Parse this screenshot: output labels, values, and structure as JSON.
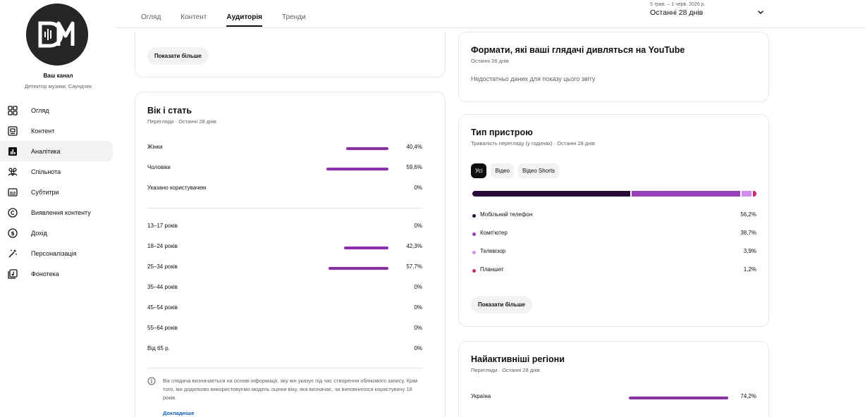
{
  "sidebar": {
    "channel_name": "Ваш канал",
    "channel_sub": "Детектор музики: Саундчек",
    "items": [
      {
        "label": "Огляд",
        "icon": "dashboard-icon",
        "active": false
      },
      {
        "label": "Контент",
        "icon": "content-icon",
        "active": false
      },
      {
        "label": "Аналітика",
        "icon": "analytics-icon",
        "active": true
      },
      {
        "label": "Спільнота",
        "icon": "community-icon",
        "active": false
      },
      {
        "label": "Субтитри",
        "icon": "subtitles-icon",
        "active": false
      },
      {
        "label": "Виявлення контенту",
        "icon": "copyright-icon",
        "active": false
      },
      {
        "label": "Дохід",
        "icon": "earn-icon",
        "active": false
      },
      {
        "label": "Персоналізація",
        "icon": "customization-icon",
        "active": false
      },
      {
        "label": "Фонотека",
        "icon": "audio-library-icon",
        "active": false
      }
    ]
  },
  "header": {
    "tabs": [
      {
        "label": "Огляд",
        "active": false
      },
      {
        "label": "Контент",
        "active": false
      },
      {
        "label": "Аудиторія",
        "active": true
      },
      {
        "label": "Тренди",
        "active": false
      }
    ],
    "date_range_small": "5 трав. – 1 черв. 2026 р.",
    "date_range_main": "Останні 28 днів"
  },
  "top_left_card": {
    "show_more": "Показати більше"
  },
  "age_gender": {
    "title": "Вік і стать",
    "subtitle": "Перегляди · Останні 28 днів",
    "gender_rows": [
      {
        "label": "Жінки",
        "value": "40,4%",
        "pct": 40.4
      },
      {
        "label": "Чоловіки",
        "value": "59,6%",
        "pct": 59.6
      },
      {
        "label": "Указано користувачем",
        "value": "0%",
        "pct": 0
      }
    ],
    "age_rows": [
      {
        "label": "13–17 років",
        "value": "0%",
        "pct": 0
      },
      {
        "label": "18–24 років",
        "value": "42,3%",
        "pct": 42.3
      },
      {
        "label": "25–34 років",
        "value": "57,7%",
        "pct": 57.7
      },
      {
        "label": "35–44 років",
        "value": "0%",
        "pct": 0
      },
      {
        "label": "45–54 років",
        "value": "0%",
        "pct": 0
      },
      {
        "label": "55–64 років",
        "value": "0%",
        "pct": 0
      },
      {
        "label": "Від 65 р.",
        "value": "0%",
        "pct": 0
      }
    ],
    "info_text": "Вік глядача визначається на основі інформації, яку він указує під час створення облікового запису. Крім того, ми додатково використовуємо модель оцінки віку, яка визначає, чи виповнилося користувачу 18 років.",
    "info_link": "Докладніше"
  },
  "formats": {
    "title": "Формати, які ваші глядачі дивляться на YouTube",
    "subtitle": "Останні 28 днів",
    "no_data": "Недостатньо даних для показу цього звіту"
  },
  "device": {
    "title": "Тип пристрою",
    "subtitle": "Тривалість перегляду (у годинах) · Останні 28 днів",
    "chips": [
      {
        "label": "Усі",
        "active": true
      },
      {
        "label": "Відео",
        "active": false
      },
      {
        "label": "Відео Shorts",
        "active": false
      }
    ],
    "rows": [
      {
        "label": "Мобільний телефон",
        "value": "56,2%",
        "pct": 56.2,
        "color": "#2a0a3d"
      },
      {
        "label": "Комп'ютер",
        "value": "38,7%",
        "pct": 38.7,
        "color": "#9a3fbf"
      },
      {
        "label": "Телевізор",
        "value": "3,9%",
        "pct": 3.9,
        "color": "#d18df0"
      },
      {
        "label": "Планшет",
        "value": "1,2%",
        "pct": 1.2,
        "color": "#d6246e"
      }
    ],
    "show_more": "Показати більше"
  },
  "regions": {
    "title": "Найактивніші регіони",
    "subtitle": "Перегляди · Останні 28 днів",
    "rows": [
      {
        "label": "Україна",
        "value": "74,2%",
        "pct": 74.2
      }
    ]
  }
}
